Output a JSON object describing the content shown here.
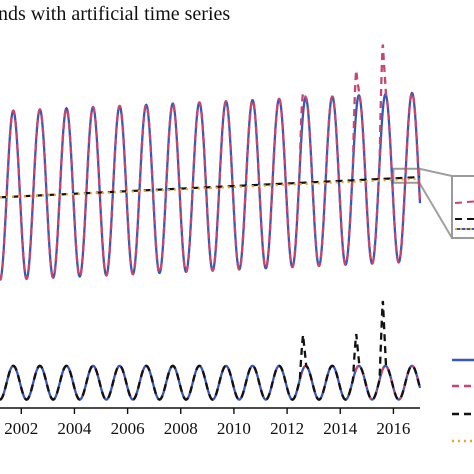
{
  "chart_data": [
    {
      "type": "line",
      "title": "nds with artificial time series",
      "xlim": [
        2001.2,
        2017.0
      ],
      "ylim": [
        -1.0,
        1.75
      ],
      "series": [
        {
          "color": "#3559b8",
          "style": "solid",
          "kind": "seasonal",
          "mean_start": 0.0,
          "mean_end": 0.22,
          "amplitude": 1.0
        },
        {
          "color": "#c8456e",
          "style": "dashed",
          "kind": "seasonal_with_spikes",
          "mean_start": 0.0,
          "mean_end": 0.22,
          "amplitude": 1.0,
          "spikes": [
            {
              "x": 2012.6,
              "y": 1.22
            },
            {
              "x": 2014.6,
              "y": 1.5
            },
            {
              "x": 2015.6,
              "y": 1.82
            }
          ]
        },
        {
          "color": "#111111",
          "style": "dashed",
          "kind": "trend",
          "y_start": -0.02,
          "y_end": 0.22
        },
        {
          "color": "#e8a23a",
          "style": "dotted",
          "kind": "trend",
          "y_start": -0.02,
          "y_end": 0.2
        }
      ]
    },
    {
      "type": "line",
      "xlim": [
        2001.2,
        2017.0
      ],
      "ylim": [
        -0.6,
        2.2
      ],
      "x_ticks": [
        "2002",
        "2004",
        "2006",
        "2008",
        "2010",
        "2012",
        "2014",
        "2016"
      ],
      "x_tick_values": [
        2002,
        2004,
        2006,
        2008,
        2010,
        2012,
        2014,
        2016
      ],
      "series": [
        {
          "color": "#3559b8",
          "style": "solid",
          "kind": "seasonal",
          "amplitude": 0.4
        },
        {
          "color": "#c8456e",
          "style": "dashed",
          "kind": "seasonal",
          "amplitude": 0.4
        },
        {
          "color": "#111111",
          "style": "dashed",
          "kind": "seasonal_with_spikes",
          "amplitude": 0.4,
          "spikes": [
            {
              "x": 2012.6,
              "y": 1.15
            },
            {
              "x": 2014.6,
              "y": 1.18
            },
            {
              "x": 2015.6,
              "y": 2.0
            }
          ]
        },
        {
          "color": "#e8a23a",
          "style": "dotted",
          "kind": "none"
        }
      ]
    }
  ]
}
